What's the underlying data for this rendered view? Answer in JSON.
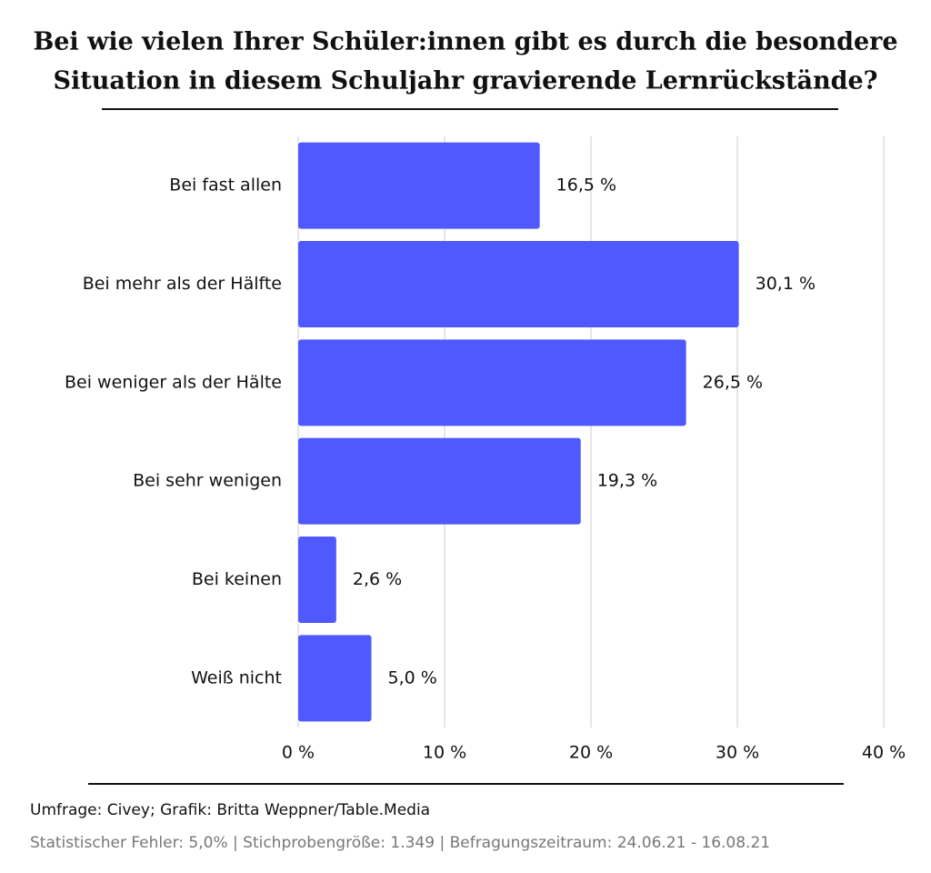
{
  "chart_data": {
    "type": "bar",
    "orientation": "horizontal",
    "title": [
      "Bei wie vielen Ihrer Schüler:innen gibt es durch die besondere",
      "Situation in diesem Schuljahr gravierende Lernrückstände?"
    ],
    "categories": [
      "Bei fast allen",
      "Bei mehr als der Hälfte",
      "Bei weniger als der Hälte",
      "Bei sehr wenigen",
      "Bei keinen",
      "Weiß nicht"
    ],
    "values": [
      16.5,
      30.1,
      26.5,
      19.3,
      2.6,
      5.0
    ],
    "value_labels": [
      "16,5 %",
      "30,1 %",
      "26,5 %",
      "19,3 %",
      "2,6 %",
      "5,0 %"
    ],
    "color": "#5059fe",
    "xlim": [
      0,
      40
    ],
    "xticks": [
      {
        "value": 0,
        "label": "0 %"
      },
      {
        "value": 10,
        "label": "10 %"
      },
      {
        "value": 20,
        "label": "20 %"
      },
      {
        "value": 30,
        "label": "30 %"
      },
      {
        "value": 40,
        "label": "40 %"
      }
    ],
    "grid": true,
    "source": "Umfrage: Civey; Grafik: Britta Weppner/Table.Media",
    "note": "Statistischer Fehler: 5,0% | Stichprobengröße: 1.349 | Befragungszeitraum: 24.06.21 - 16.08.21"
  }
}
